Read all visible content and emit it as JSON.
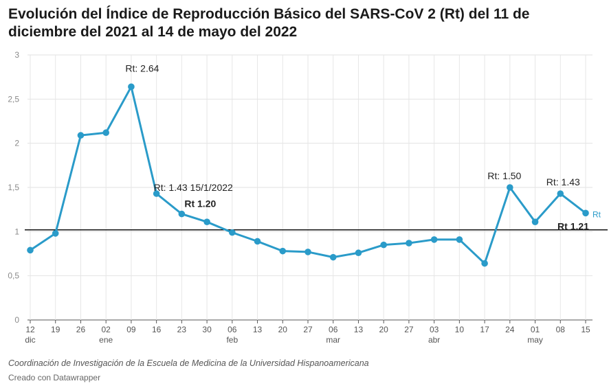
{
  "title": "Evolución del Índice de Reproducción Básico del SARS-CoV 2 (Rt) del  11 de diciembre del 2021 al 14 de mayo del 2022",
  "source": "Coordinación de Investigación de la Escuela de Medicina de la Universidad Hispanoamericana",
  "credit": "Creado con Datawrapper",
  "chart_data": {
    "type": "line",
    "title": "Evolución del Índice de Reproducción Básico del SARS-CoV 2 (Rt) del  11 de diciembre del 2021 al 14 de mayo del 2022",
    "xlabel": "",
    "ylabel": "",
    "ylim": [
      0,
      3
    ],
    "y_ticks": [
      0,
      0.5,
      1,
      1.5,
      2,
      2.5,
      3
    ],
    "y_tick_labels": [
      "0",
      "0,5",
      "1",
      "1,5",
      "2",
      "2,5",
      "3"
    ],
    "grid": true,
    "x_tick_labels": [
      "12",
      "19",
      "26",
      "02",
      "09",
      "16",
      "23",
      "30",
      "06",
      "13",
      "20",
      "27",
      "06",
      "13",
      "20",
      "27",
      "03",
      "10",
      "17",
      "24",
      "01",
      "08",
      "15"
    ],
    "month_labels": [
      {
        "index": 0,
        "label": "dic"
      },
      {
        "index": 3,
        "label": "ene"
      },
      {
        "index": 8,
        "label": "feb"
      },
      {
        "index": 12,
        "label": "mar"
      },
      {
        "index": 16,
        "label": "abr"
      },
      {
        "index": 20,
        "label": "may"
      }
    ],
    "series": [
      {
        "name": "Rt",
        "color": "#2a9bc9",
        "values": [
          0.79,
          0.98,
          2.09,
          2.12,
          2.64,
          1.43,
          1.2,
          1.11,
          0.99,
          0.89,
          0.78,
          0.77,
          0.71,
          0.76,
          0.85,
          0.87,
          0.91,
          0.91,
          0.64,
          1.5,
          1.11,
          1.43,
          1.21
        ]
      }
    ],
    "reference_line": {
      "value": 1.02,
      "color": "#111111"
    },
    "annotations": [
      {
        "index": 4,
        "text": "Rt: 2.64",
        "bold": false
      },
      {
        "index": 5,
        "text": "Rt: 1.43  15/1/2022",
        "bold": false
      },
      {
        "index": 6,
        "text": "Rt 1.20",
        "bold": true
      },
      {
        "index": 19,
        "text": "Rt: 1.50",
        "bold": false
      },
      {
        "index": 21,
        "text": "Rt: 1.43",
        "bold": false
      },
      {
        "index": 22,
        "text": "Rt 1.21",
        "bold": true
      }
    ],
    "series_label": "Rt"
  }
}
